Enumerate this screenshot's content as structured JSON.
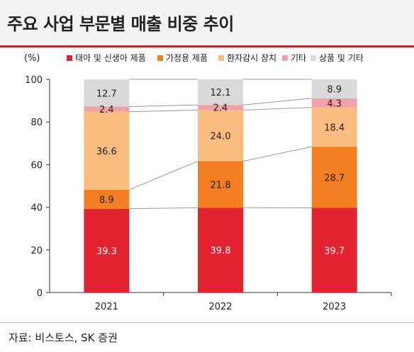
{
  "title": "주요 사업 부문별 매출 비중 추이",
  "source": "자료: 비스토스, SK 증권",
  "chart_data": {
    "type": "bar",
    "stacked": true,
    "unit_label": "(%)",
    "categories": [
      "2021",
      "2022",
      "2023"
    ],
    "ylim": [
      0,
      100
    ],
    "yticks": [
      "0",
      "20",
      "40",
      "60",
      "80",
      "100"
    ],
    "legend_position": "top",
    "series": [
      {
        "name": "태아 및 신생아 제품",
        "color": "#e32330",
        "label_color": "#ffffff",
        "values": [
          39.3,
          39.8,
          39.7
        ]
      },
      {
        "name": "가정용 제품",
        "color": "#f47f22",
        "label_color": "#222222",
        "values": [
          8.9,
          21.8,
          28.7
        ]
      },
      {
        "name": "환자감시 장치",
        "color": "#fbbc7f",
        "label_color": "#222222",
        "values": [
          36.6,
          24.0,
          18.4
        ]
      },
      {
        "name": "기타",
        "color": "#f2a0a8",
        "label_color": "#222222",
        "values": [
          2.4,
          2.4,
          4.3
        ]
      },
      {
        "name": "상품 및 기타",
        "color": "#d9d9d9",
        "label_color": "#222222",
        "values": [
          12.7,
          12.1,
          8.9
        ]
      }
    ]
  }
}
